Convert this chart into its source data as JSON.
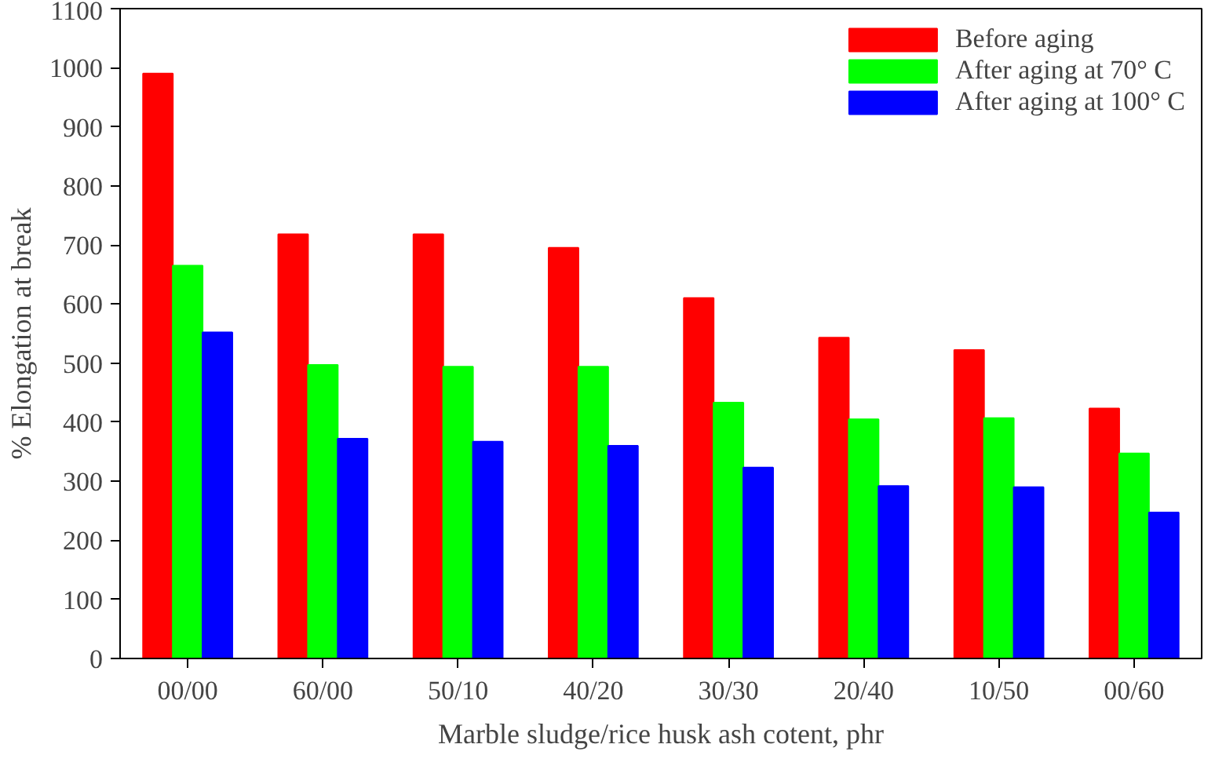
{
  "chart_data": {
    "type": "bar",
    "xlabel": "Marble sludge/rice husk ash cotent, phr",
    "ylabel": "% Elongation at break",
    "categories": [
      "00/00",
      "60/00",
      "50/10",
      "40/20",
      "30/30",
      "20/40",
      "10/50",
      "00/60"
    ],
    "series": [
      {
        "name": "Before aging",
        "color": "#ff0000",
        "values": [
          990,
          718,
          718,
          695,
          610,
          543,
          522,
          423
        ]
      },
      {
        "name": "After aging at 70° C",
        "color": "#00ff00",
        "values": [
          665,
          497,
          494,
          494,
          433,
          405,
          407,
          347
        ]
      },
      {
        "name": "After aging at 100° C",
        "color": "#0000ff",
        "values": [
          552,
          372,
          367,
          360,
          323,
          292,
          290,
          247
        ]
      }
    ],
    "ylim": [
      0,
      1100
    ],
    "yticks": [
      0,
      100,
      200,
      300,
      400,
      500,
      600,
      700,
      800,
      900,
      1000,
      1100
    ],
    "grid": false,
    "legend": "top right"
  }
}
